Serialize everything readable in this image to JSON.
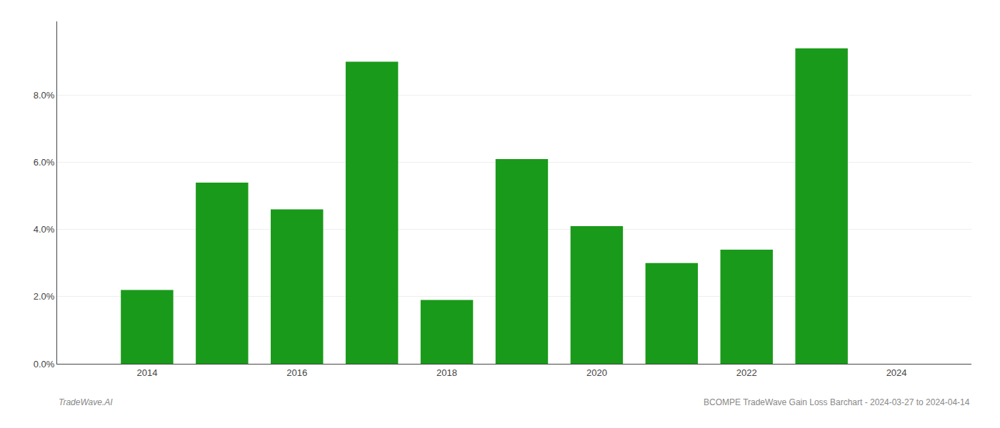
{
  "chart_data": {
    "type": "bar",
    "x": [
      2014,
      2015,
      2016,
      2017,
      2018,
      2019,
      2020,
      2021,
      2022,
      2023
    ],
    "values": [
      0.022,
      0.054,
      0.046,
      0.09,
      0.019,
      0.061,
      0.041,
      0.03,
      0.034,
      0.094
    ],
    "color": "#1a9a1a",
    "xlim": [
      2012.8,
      2025.0
    ],
    "xticks": [
      2014,
      2016,
      2018,
      2020,
      2022,
      2024
    ],
    "ylim": [
      0,
      0.102
    ],
    "yticks": [
      {
        "value": 0.0,
        "label": "0.0%"
      },
      {
        "value": 0.02,
        "label": "2.0%"
      },
      {
        "value": 0.04,
        "label": "4.0%"
      },
      {
        "value": 0.06,
        "label": "6.0%"
      },
      {
        "value": 0.08,
        "label": "8.0%"
      }
    ],
    "grid": true,
    "annotations": [
      "TradeWave.AI",
      "BCOMPE TradeWave Gain Loss Barchart - 2024-03-27 to 2024-04-14"
    ]
  }
}
